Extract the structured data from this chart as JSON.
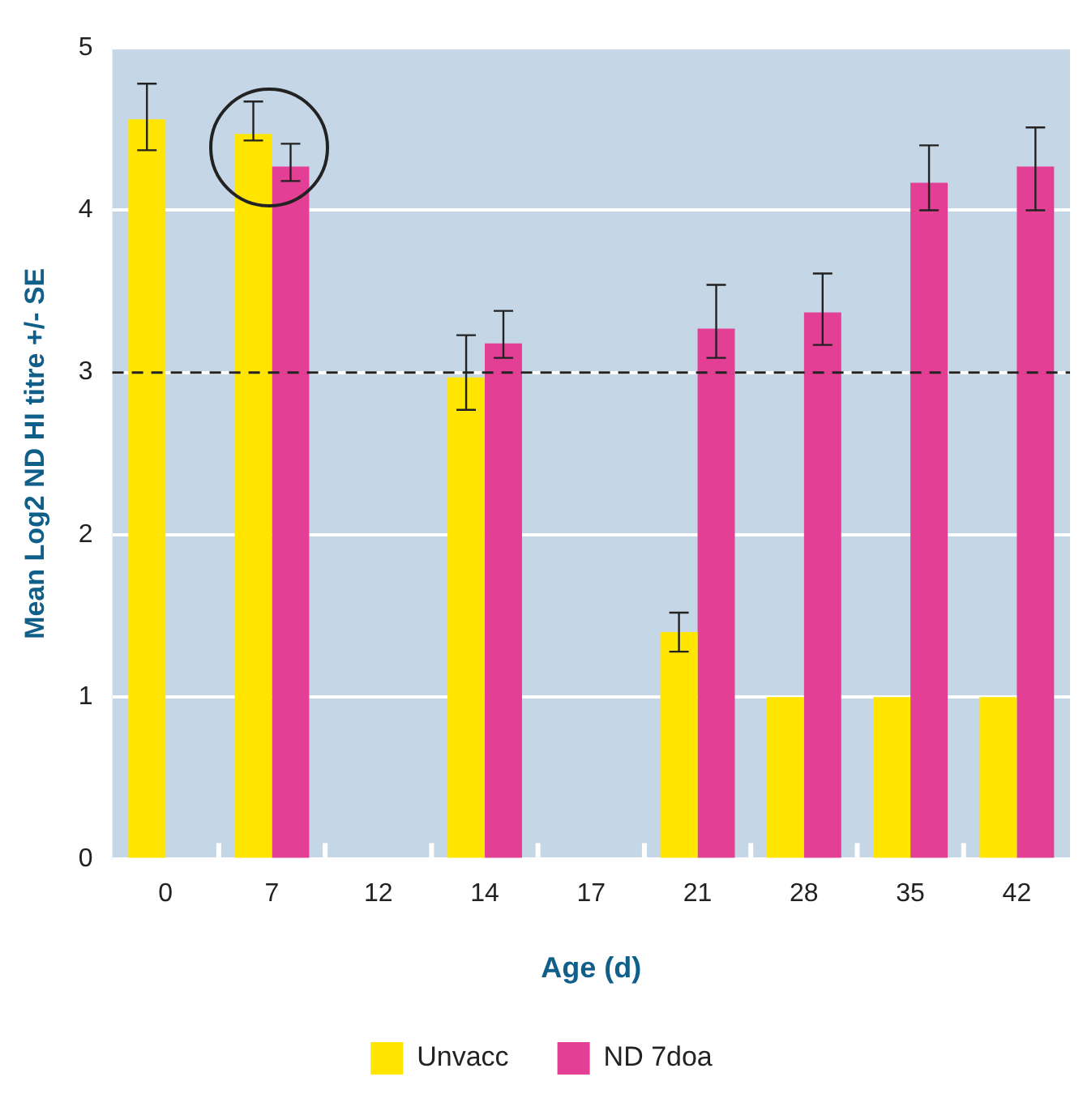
{
  "chart_data": {
    "type": "bar",
    "xlabel": "Age (d)",
    "ylabel": "Mean Log2 ND HI titre +/- SE",
    "categories": [
      "0",
      "7",
      "12",
      "14",
      "17",
      "21",
      "28",
      "35",
      "42"
    ],
    "series": [
      {
        "name": "Unvacc",
        "color": "#ffe500",
        "values": [
          4.56,
          4.47,
          null,
          2.97,
          null,
          1.4,
          1,
          1,
          1
        ],
        "errors": [
          [
            4.37,
            4.78
          ],
          [
            4.43,
            4.67
          ],
          null,
          [
            2.77,
            3.23
          ],
          null,
          [
            1.28,
            1.52
          ],
          null,
          null,
          null
        ]
      },
      {
        "name": "ND 7doa",
        "color": "#e34095",
        "values": [
          null,
          4.27,
          null,
          3.18,
          null,
          3.27,
          3.37,
          4.17,
          4.27
        ],
        "errors": [
          null,
          [
            4.18,
            4.41
          ],
          null,
          [
            3.09,
            3.38
          ],
          null,
          [
            3.09,
            3.54
          ],
          [
            3.17,
            3.61
          ],
          [
            4.0,
            4.4
          ],
          [
            4.0,
            4.51
          ]
        ]
      }
    ],
    "ylim": [
      0,
      5
    ],
    "yticks": [
      0,
      1,
      2,
      3,
      4,
      5
    ],
    "grid": "y",
    "legend": "bottom",
    "ref_lines": [
      {
        "axis": "y",
        "value": 3,
        "color": "#222222",
        "line_style": "dashed"
      }
    ]
  }
}
